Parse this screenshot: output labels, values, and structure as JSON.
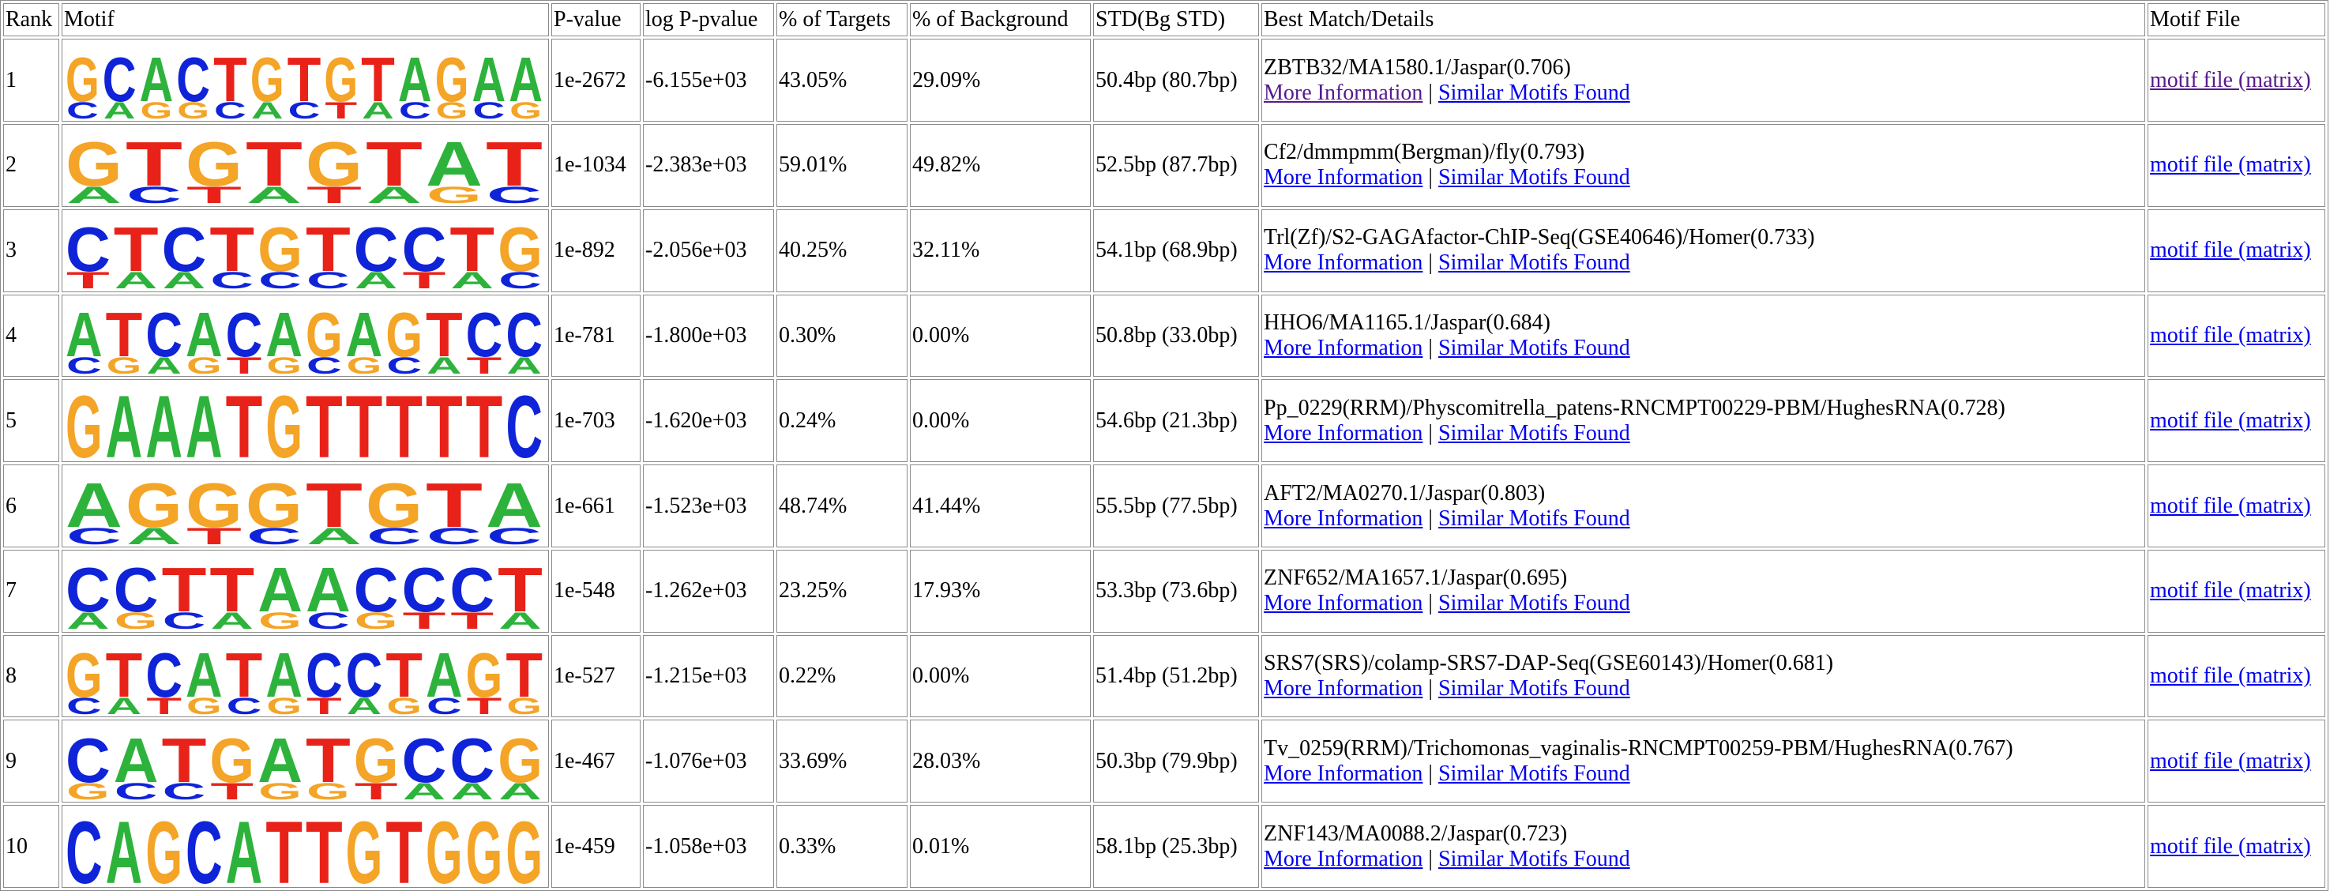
{
  "colors": {
    "A": "#2db33b",
    "C": "#0f23d8",
    "G": "#f4a426",
    "T": "#e82218",
    "link": "#0000ee",
    "visited": "#551a8b",
    "border": "#8a8a8a"
  },
  "headers": [
    "Rank",
    "Motif",
    "P-value",
    "log P-pvalue",
    "% of Targets",
    "% of Background",
    "STD(Bg STD)",
    "Best Match/Details",
    "Motif File"
  ],
  "link_labels": {
    "more": "More Information",
    "separator": "|",
    "similar": "Similar Motifs Found",
    "file": "motif file (matrix)"
  },
  "rows": [
    {
      "rank": "1",
      "pvalue": "1e-2672",
      "logp": "-6.155e+03",
      "targets": "43.05%",
      "background": "29.09%",
      "std": "50.4bp (80.7bp)",
      "match": "ZBTB32/MA1580.1/Jaspar(0.706)",
      "more_visited": true,
      "file_visited": true,
      "logo": [
        [
          "G",
          "C"
        ],
        [
          "C",
          "A"
        ],
        [
          "A",
          "G"
        ],
        [
          "C",
          "G"
        ],
        [
          "T",
          "C"
        ],
        [
          "G",
          "A"
        ],
        [
          "T",
          "C"
        ],
        [
          "G",
          "T"
        ],
        [
          "T",
          "A"
        ],
        [
          "A",
          "C"
        ],
        [
          "G",
          "G"
        ],
        [
          "A",
          "C"
        ],
        [
          "A",
          "G"
        ]
      ]
    },
    {
      "rank": "2",
      "pvalue": "1e-1034",
      "logp": "-2.383e+03",
      "targets": "59.01%",
      "background": "49.82%",
      "std": "52.5bp (87.7bp)",
      "match": "Cf2/dmmpmm(Bergman)/fly(0.793)",
      "more_visited": false,
      "file_visited": false,
      "logo": [
        [
          "G",
          "A"
        ],
        [
          "T",
          "C"
        ],
        [
          "G",
          "T"
        ],
        [
          "T",
          "A"
        ],
        [
          "G",
          "T"
        ],
        [
          "T",
          "A"
        ],
        [
          "A",
          "G"
        ],
        [
          "T",
          "C"
        ]
      ]
    },
    {
      "rank": "3",
      "pvalue": "1e-892",
      "logp": "-2.056e+03",
      "targets": "40.25%",
      "background": "32.11%",
      "std": "54.1bp (68.9bp)",
      "match": "Trl(Zf)/S2-GAGAfactor-ChIP-Seq(GSE40646)/Homer(0.733)",
      "more_visited": false,
      "file_visited": false,
      "logo": [
        [
          "C",
          "T"
        ],
        [
          "T",
          "A"
        ],
        [
          "C",
          "A"
        ],
        [
          "T",
          "C"
        ],
        [
          "G",
          "C"
        ],
        [
          "T",
          "C"
        ],
        [
          "C",
          "A"
        ],
        [
          "C",
          "T"
        ],
        [
          "T",
          "A"
        ],
        [
          "G",
          "C"
        ]
      ]
    },
    {
      "rank": "4",
      "pvalue": "1e-781",
      "logp": "-1.800e+03",
      "targets": "0.30%",
      "background": "0.00%",
      "std": "50.8bp (33.0bp)",
      "match": "HHO6/MA1165.1/Jaspar(0.684)",
      "more_visited": false,
      "file_visited": false,
      "logo": [
        [
          "A",
          "C"
        ],
        [
          "T",
          "G"
        ],
        [
          "C",
          "A"
        ],
        [
          "A",
          "G"
        ],
        [
          "C",
          "T"
        ],
        [
          "A",
          "G"
        ],
        [
          "G",
          "C"
        ],
        [
          "A",
          "G"
        ],
        [
          "G",
          "C"
        ],
        [
          "T",
          "A"
        ],
        [
          "C",
          "T"
        ],
        [
          "C",
          "A"
        ]
      ]
    },
    {
      "rank": "5",
      "pvalue": "1e-703",
      "logp": "-1.620e+03",
      "targets": "0.24%",
      "background": "0.00%",
      "std": "54.6bp (21.3bp)",
      "match": "Pp_0229(RRM)/Physcomitrella_patens-RNCMPT00229-PBM/HughesRNA(0.728)",
      "more_visited": false,
      "file_visited": false,
      "logo": [
        [
          "G",
          ""
        ],
        [
          "A",
          ""
        ],
        [
          "A",
          ""
        ],
        [
          "A",
          ""
        ],
        [
          "T",
          ""
        ],
        [
          "G",
          ""
        ],
        [
          "T",
          ""
        ],
        [
          "T",
          ""
        ],
        [
          "T",
          ""
        ],
        [
          "T",
          ""
        ],
        [
          "T",
          ""
        ],
        [
          "C",
          ""
        ]
      ]
    },
    {
      "rank": "6",
      "pvalue": "1e-661",
      "logp": "-1.523e+03",
      "targets": "48.74%",
      "background": "41.44%",
      "std": "55.5bp (77.5bp)",
      "match": "AFT2/MA0270.1/Jaspar(0.803)",
      "more_visited": false,
      "file_visited": false,
      "logo": [
        [
          "A",
          "C"
        ],
        [
          "G",
          "A"
        ],
        [
          "G",
          "T"
        ],
        [
          "G",
          "C"
        ],
        [
          "T",
          "A"
        ],
        [
          "G",
          "C"
        ],
        [
          "T",
          "C"
        ],
        [
          "A",
          "C"
        ]
      ]
    },
    {
      "rank": "7",
      "pvalue": "1e-548",
      "logp": "-1.262e+03",
      "targets": "23.25%",
      "background": "17.93%",
      "std": "53.3bp (73.6bp)",
      "match": "ZNF652/MA1657.1/Jaspar(0.695)",
      "more_visited": false,
      "file_visited": false,
      "logo": [
        [
          "C",
          "A"
        ],
        [
          "C",
          "G"
        ],
        [
          "T",
          "C"
        ],
        [
          "T",
          "A"
        ],
        [
          "A",
          "G"
        ],
        [
          "A",
          "C"
        ],
        [
          "C",
          "G"
        ],
        [
          "C",
          "T"
        ],
        [
          "C",
          "T"
        ],
        [
          "T",
          "A"
        ]
      ]
    },
    {
      "rank": "8",
      "pvalue": "1e-527",
      "logp": "-1.215e+03",
      "targets": "0.22%",
      "background": "0.00%",
      "std": "51.4bp (51.2bp)",
      "match": "SRS7(SRS)/colamp-SRS7-DAP-Seq(GSE60143)/Homer(0.681)",
      "more_visited": false,
      "file_visited": false,
      "logo": [
        [
          "G",
          "C"
        ],
        [
          "T",
          "A"
        ],
        [
          "C",
          "T"
        ],
        [
          "A",
          "G"
        ],
        [
          "T",
          "C"
        ],
        [
          "A",
          "G"
        ],
        [
          "C",
          "T"
        ],
        [
          "C",
          "A"
        ],
        [
          "T",
          "G"
        ],
        [
          "A",
          "C"
        ],
        [
          "G",
          "T"
        ],
        [
          "T",
          "G"
        ]
      ]
    },
    {
      "rank": "9",
      "pvalue": "1e-467",
      "logp": "-1.076e+03",
      "targets": "33.69%",
      "background": "28.03%",
      "std": "50.3bp (79.9bp)",
      "match": "Tv_0259(RRM)/Trichomonas_vaginalis-RNCMPT00259-PBM/HughesRNA(0.767)",
      "more_visited": false,
      "file_visited": false,
      "logo": [
        [
          "C",
          "G"
        ],
        [
          "A",
          "C"
        ],
        [
          "T",
          "C"
        ],
        [
          "G",
          "T"
        ],
        [
          "A",
          "G"
        ],
        [
          "T",
          "G"
        ],
        [
          "G",
          "T"
        ],
        [
          "C",
          "A"
        ],
        [
          "C",
          "A"
        ],
        [
          "G",
          "A"
        ]
      ]
    },
    {
      "rank": "10",
      "pvalue": "1e-459",
      "logp": "-1.058e+03",
      "targets": "0.33%",
      "background": "0.01%",
      "std": "58.1bp (25.3bp)",
      "match": "ZNF143/MA0088.2/Jaspar(0.723)",
      "more_visited": false,
      "file_visited": false,
      "logo": [
        [
          "C",
          ""
        ],
        [
          "A",
          ""
        ],
        [
          "G",
          ""
        ],
        [
          "C",
          ""
        ],
        [
          "A",
          ""
        ],
        [
          "T",
          ""
        ],
        [
          "T",
          ""
        ],
        [
          "G",
          ""
        ],
        [
          "T",
          ""
        ],
        [
          "G",
          ""
        ],
        [
          "G",
          ""
        ],
        [
          "G",
          ""
        ]
      ]
    }
  ]
}
